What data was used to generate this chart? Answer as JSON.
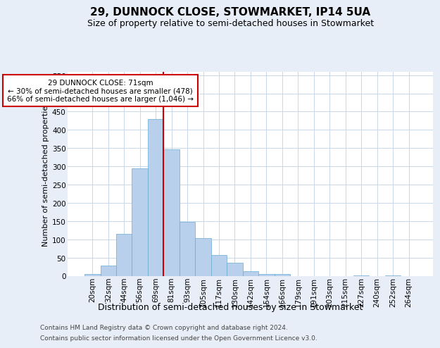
{
  "title": "29, DUNNOCK CLOSE, STOWMARKET, IP14 5UA",
  "subtitle": "Size of property relative to semi-detached houses in Stowmarket",
  "xlabel": "Distribution of semi-detached houses by size in Stowmarket",
  "ylabel": "Number of semi-detached properties",
  "footnote1": "Contains HM Land Registry data © Crown copyright and database right 2024.",
  "footnote2": "Contains public sector information licensed under the Open Government Licence v3.0.",
  "bar_labels": [
    "20sqm",
    "32sqm",
    "44sqm",
    "56sqm",
    "69sqm",
    "81sqm",
    "93sqm",
    "105sqm",
    "117sqm",
    "130sqm",
    "142sqm",
    "154sqm",
    "166sqm",
    "179sqm",
    "191sqm",
    "203sqm",
    "215sqm",
    "227sqm",
    "240sqm",
    "252sqm",
    "264sqm"
  ],
  "bar_values": [
    5,
    28,
    115,
    295,
    430,
    347,
    147,
    103,
    57,
    35,
    13,
    4,
    5,
    0,
    0,
    0,
    0,
    1,
    0,
    1,
    0
  ],
  "bar_color": "#b8d0eb",
  "bar_edge_color": "#6aaad4",
  "grid_color": "#c8d8ea",
  "background_color": "#ffffff",
  "fig_background_color": "#e8eef8",
  "vline_color": "#cc0000",
  "vline_pos": 4.5,
  "annotation_line1": "29 DUNNOCK CLOSE: 71sqm",
  "annotation_line2": "← 30% of semi-detached houses are smaller (478)",
  "annotation_line3": "66% of semi-detached houses are larger (1,046) →",
  "annotation_box_edgecolor": "#cc0000",
  "ylim": [
    0,
    560
  ],
  "yticks": [
    0,
    50,
    100,
    150,
    200,
    250,
    300,
    350,
    400,
    450,
    500,
    550
  ],
  "title_fontsize": 11,
  "subtitle_fontsize": 9,
  "ylabel_fontsize": 8,
  "xlabel_fontsize": 9,
  "tick_fontsize": 7.5,
  "footnote_fontsize": 6.5
}
